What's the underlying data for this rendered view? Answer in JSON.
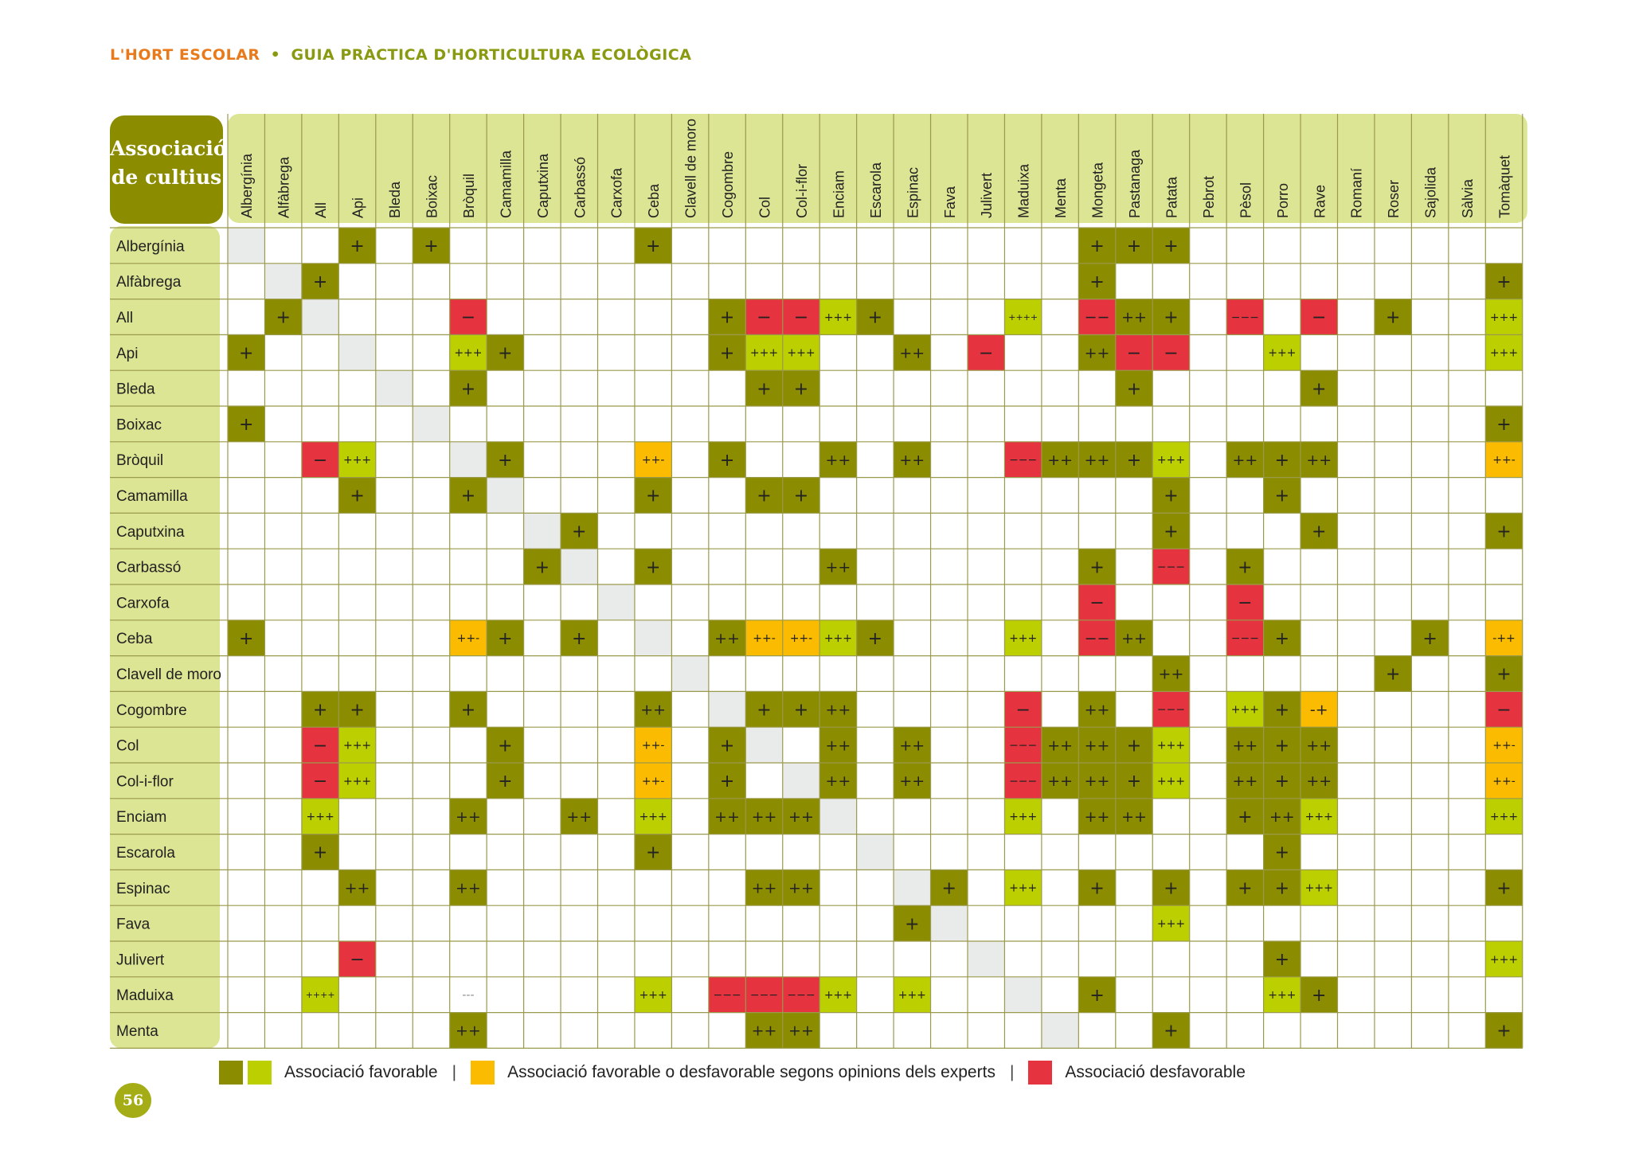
{
  "header": {
    "title": "L'HORT ESCOLAR",
    "separator": "•",
    "subtitle": "GUIA PRÀCTICA D'HORTICULTURA ECOLÒGICA"
  },
  "table": {
    "title_line1": "Associació",
    "title_line2": "de cultius",
    "columns": [
      "Albergínia",
      "Alfàbrega",
      "All",
      "Api",
      "Bleda",
      "Boixac",
      "Bròquil",
      "Camamilla",
      "Caputxina",
      "Carbassó",
      "Carxofa",
      "Ceba",
      "Clavell de moro",
      "Cogombre",
      "Col",
      "Col-i-flor",
      "Enciam",
      "Escarola",
      "Espinac",
      "Fava",
      "Julivert",
      "Maduixa",
      "Menta",
      "Mongeta",
      "Pastanaga",
      "Patata",
      "Pebrot",
      "Pèsol",
      "Porro",
      "Rave",
      "Romaní",
      "Roser",
      "Sajolida",
      "Sàlvia",
      "Tomàquet"
    ],
    "rows": [
      {
        "label": "Albergínia",
        "cells": [
          [
            3,
            "+",
            "D"
          ],
          [
            5,
            "+",
            "D"
          ],
          [
            11,
            "+",
            "D"
          ],
          [
            23,
            "+",
            "D"
          ],
          [
            24,
            "+",
            "D"
          ],
          [
            25,
            "+",
            "D"
          ]
        ]
      },
      {
        "label": "Alfàbrega",
        "cells": [
          [
            2,
            "+",
            "D"
          ],
          [
            23,
            "+",
            "D"
          ],
          [
            34,
            "+",
            "D"
          ]
        ]
      },
      {
        "label": "All",
        "cells": [
          [
            1,
            "+",
            "D"
          ],
          [
            6,
            "−",
            "R"
          ],
          [
            13,
            "+",
            "D"
          ],
          [
            14,
            "−",
            "R"
          ],
          [
            15,
            "−",
            "R"
          ],
          [
            16,
            "+++",
            "L"
          ],
          [
            17,
            "+",
            "D"
          ],
          [
            21,
            "++++",
            "L"
          ],
          [
            23,
            "−−",
            "R"
          ],
          [
            24,
            "++",
            "D"
          ],
          [
            25,
            "+",
            "D"
          ],
          [
            27,
            "−−−",
            "R"
          ],
          [
            29,
            "−",
            "R"
          ],
          [
            31,
            "+",
            "D"
          ],
          [
            34,
            "+++",
            "L"
          ]
        ]
      },
      {
        "label": "Api",
        "cells": [
          [
            0,
            "+",
            "D"
          ],
          [
            6,
            "+++",
            "L"
          ],
          [
            7,
            "+",
            "D"
          ],
          [
            13,
            "+",
            "D"
          ],
          [
            14,
            "+++",
            "L"
          ],
          [
            15,
            "+++",
            "L"
          ],
          [
            18,
            "++",
            "D"
          ],
          [
            20,
            "−",
            "R"
          ],
          [
            23,
            "++",
            "D"
          ],
          [
            24,
            "−",
            "R"
          ],
          [
            25,
            "−",
            "R"
          ],
          [
            28,
            "+++",
            "L"
          ],
          [
            34,
            "+++",
            "L"
          ]
        ]
      },
      {
        "label": "Bleda",
        "cells": [
          [
            6,
            "+",
            "D"
          ],
          [
            14,
            "+",
            "D"
          ],
          [
            15,
            "+",
            "D"
          ],
          [
            24,
            "+",
            "D"
          ],
          [
            29,
            "+",
            "D"
          ]
        ]
      },
      {
        "label": "Boixac",
        "cells": [
          [
            0,
            "+",
            "D"
          ],
          [
            34,
            "+",
            "D"
          ]
        ]
      },
      {
        "label": "Bròquil",
        "cells": [
          [
            2,
            "−",
            "R"
          ],
          [
            3,
            "+++",
            "L"
          ],
          [
            7,
            "+",
            "D"
          ],
          [
            11,
            "++-",
            "Y"
          ],
          [
            13,
            "+",
            "D"
          ],
          [
            16,
            "++",
            "D"
          ],
          [
            18,
            "++",
            "D"
          ],
          [
            21,
            "−−−",
            "R"
          ],
          [
            22,
            "++",
            "D"
          ],
          [
            23,
            "++",
            "D"
          ],
          [
            24,
            "+",
            "D"
          ],
          [
            25,
            "+++",
            "L"
          ],
          [
            27,
            "++",
            "D"
          ],
          [
            28,
            "+",
            "D"
          ],
          [
            29,
            "++",
            "D"
          ],
          [
            34,
            "++-",
            "Y"
          ]
        ]
      },
      {
        "label": "Camamilla",
        "cells": [
          [
            3,
            "+",
            "D"
          ],
          [
            6,
            "+",
            "D"
          ],
          [
            11,
            "+",
            "D"
          ],
          [
            14,
            "+",
            "D"
          ],
          [
            15,
            "+",
            "D"
          ],
          [
            25,
            "+",
            "D"
          ],
          [
            28,
            "+",
            "D"
          ]
        ]
      },
      {
        "label": "Caputxina",
        "cells": [
          [
            9,
            "+",
            "D"
          ],
          [
            25,
            "+",
            "D"
          ],
          [
            29,
            "+",
            "D"
          ],
          [
            34,
            "+",
            "D"
          ]
        ]
      },
      {
        "label": "Carbassó",
        "cells": [
          [
            8,
            "+",
            "D"
          ],
          [
            11,
            "+",
            "D"
          ],
          [
            16,
            "++",
            "D"
          ],
          [
            23,
            "+",
            "D"
          ],
          [
            25,
            "−−−",
            "R"
          ],
          [
            27,
            "+",
            "D"
          ]
        ]
      },
      {
        "label": "Carxofa",
        "cells": [
          [
            23,
            "−",
            "R"
          ],
          [
            27,
            "−",
            "R"
          ]
        ]
      },
      {
        "label": "Ceba",
        "cells": [
          [
            0,
            "+",
            "D"
          ],
          [
            6,
            "++-",
            "Y"
          ],
          [
            7,
            "+",
            "D"
          ],
          [
            9,
            "+",
            "D"
          ],
          [
            13,
            "++",
            "D"
          ],
          [
            14,
            "++-",
            "Y"
          ],
          [
            15,
            "++-",
            "Y"
          ],
          [
            16,
            "+++",
            "L"
          ],
          [
            17,
            "+",
            "D"
          ],
          [
            21,
            "+++",
            "L"
          ],
          [
            23,
            "−−",
            "R"
          ],
          [
            24,
            "++",
            "D"
          ],
          [
            27,
            "−−−",
            "R"
          ],
          [
            28,
            "+",
            "D"
          ],
          [
            32,
            "+",
            "D"
          ],
          [
            34,
            "-++",
            "Y"
          ]
        ]
      },
      {
        "label": "Clavell de moro",
        "cells": [
          [
            25,
            "++",
            "D"
          ],
          [
            31,
            "+",
            "D"
          ],
          [
            34,
            "+",
            "D"
          ]
        ]
      },
      {
        "label": "Cogombre",
        "cells": [
          [
            2,
            "+",
            "D"
          ],
          [
            3,
            "+",
            "D"
          ],
          [
            6,
            "+",
            "D"
          ],
          [
            11,
            "++",
            "D"
          ],
          [
            14,
            "+",
            "D"
          ],
          [
            15,
            "+",
            "D"
          ],
          [
            16,
            "++",
            "D"
          ],
          [
            21,
            "−",
            "R"
          ],
          [
            23,
            "++",
            "D"
          ],
          [
            25,
            "−−−",
            "R"
          ],
          [
            27,
            "+++",
            "L"
          ],
          [
            28,
            "+",
            "D"
          ],
          [
            29,
            "-+",
            "Y"
          ],
          [
            34,
            "−",
            "R"
          ]
        ]
      },
      {
        "label": "Col",
        "cells": [
          [
            2,
            "−",
            "R"
          ],
          [
            3,
            "+++",
            "L"
          ],
          [
            7,
            "+",
            "D"
          ],
          [
            11,
            "++-",
            "Y"
          ],
          [
            13,
            "+",
            "D"
          ],
          [
            16,
            "++",
            "D"
          ],
          [
            18,
            "++",
            "D"
          ],
          [
            21,
            "−−−",
            "R"
          ],
          [
            22,
            "++",
            "D"
          ],
          [
            23,
            "++",
            "D"
          ],
          [
            24,
            "+",
            "D"
          ],
          [
            25,
            "+++",
            "L"
          ],
          [
            27,
            "++",
            "D"
          ],
          [
            28,
            "+",
            "D"
          ],
          [
            29,
            "++",
            "D"
          ],
          [
            34,
            "++-",
            "Y"
          ]
        ]
      },
      {
        "label": "Col-i-flor",
        "cells": [
          [
            2,
            "−",
            "R"
          ],
          [
            3,
            "+++",
            "L"
          ],
          [
            7,
            "+",
            "D"
          ],
          [
            11,
            "++-",
            "Y"
          ],
          [
            13,
            "+",
            "D"
          ],
          [
            16,
            "++",
            "D"
          ],
          [
            18,
            "++",
            "D"
          ],
          [
            21,
            "−−−",
            "R"
          ],
          [
            22,
            "++",
            "D"
          ],
          [
            23,
            "++",
            "D"
          ],
          [
            24,
            "+",
            "D"
          ],
          [
            25,
            "+++",
            "L"
          ],
          [
            27,
            "++",
            "D"
          ],
          [
            28,
            "+",
            "D"
          ],
          [
            29,
            "++",
            "D"
          ],
          [
            34,
            "++-",
            "Y"
          ]
        ]
      },
      {
        "label": "Enciam",
        "cells": [
          [
            2,
            "+++",
            "L"
          ],
          [
            6,
            "++",
            "D"
          ],
          [
            9,
            "++",
            "D"
          ],
          [
            11,
            "+++",
            "L"
          ],
          [
            13,
            "++",
            "D"
          ],
          [
            14,
            "++",
            "D"
          ],
          [
            15,
            "++",
            "D"
          ],
          [
            21,
            "+++",
            "L"
          ],
          [
            23,
            "++",
            "D"
          ],
          [
            24,
            "++",
            "D"
          ],
          [
            27,
            "+",
            "D"
          ],
          [
            28,
            "++",
            "D"
          ],
          [
            29,
            "+++",
            "L"
          ],
          [
            34,
            "+++",
            "L"
          ]
        ]
      },
      {
        "label": "Escarola",
        "cells": [
          [
            2,
            "+",
            "D"
          ],
          [
            11,
            "+",
            "D"
          ],
          [
            28,
            "+",
            "D"
          ]
        ]
      },
      {
        "label": "Espinac",
        "cells": [
          [
            3,
            "++",
            "D"
          ],
          [
            6,
            "++",
            "D"
          ],
          [
            14,
            "++",
            "D"
          ],
          [
            15,
            "++",
            "D"
          ],
          [
            19,
            "+",
            "D"
          ],
          [
            21,
            "+++",
            "L"
          ],
          [
            23,
            "+",
            "D"
          ],
          [
            25,
            "+",
            "D"
          ],
          [
            27,
            "+",
            "D"
          ],
          [
            28,
            "+",
            "D"
          ],
          [
            29,
            "+++",
            "L"
          ],
          [
            34,
            "+",
            "D"
          ]
        ]
      },
      {
        "label": "Fava",
        "cells": [
          [
            18,
            "+",
            "D"
          ],
          [
            25,
            "+++",
            "L"
          ]
        ]
      },
      {
        "label": "Julivert",
        "cells": [
          [
            3,
            "−",
            "R"
          ],
          [
            28,
            "+",
            "D"
          ],
          [
            34,
            "+++",
            "L"
          ]
        ]
      },
      {
        "label": "Maduixa",
        "cells": [
          [
            2,
            "++++",
            "L"
          ],
          [
            6,
            "---",
            "N"
          ],
          [
            11,
            "+++",
            "L"
          ],
          [
            13,
            "−−−",
            "R"
          ],
          [
            14,
            "−−−",
            "R"
          ],
          [
            15,
            "−−−",
            "R"
          ],
          [
            16,
            "+++",
            "L"
          ],
          [
            18,
            "+++",
            "L"
          ],
          [
            23,
            "+",
            "D"
          ],
          [
            28,
            "+++",
            "L"
          ],
          [
            29,
            "+",
            "D"
          ]
        ]
      },
      {
        "label": "Menta",
        "cells": [
          [
            6,
            "++",
            "D"
          ],
          [
            14,
            "++",
            "D"
          ],
          [
            15,
            "++",
            "D"
          ],
          [
            25,
            "+",
            "D"
          ],
          [
            34,
            "+",
            "D"
          ]
        ]
      }
    ]
  },
  "legend": {
    "favorable": "Associació favorable",
    "mixed": "Associació favorable o desfavorable segons opinions dels experts",
    "unfavorable": "Associació desfavorable",
    "divider": "|"
  },
  "colors": {
    "dark_olive": "#8c8c00",
    "lime": "#bccf00",
    "yellow": "#fbbb00",
    "red": "#e5333f",
    "label_bg": "#dce593",
    "diagonal": "#e9ebeb",
    "grid": "#9a9a4c"
  },
  "page_number": "56"
}
